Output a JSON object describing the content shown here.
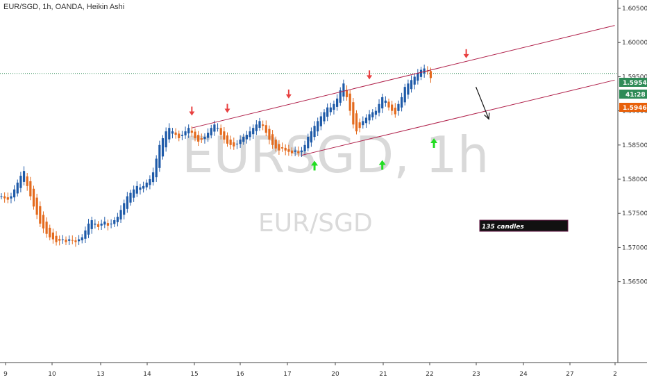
{
  "title": "EUR/SGD, 1h, OANDA, Heikin Ashi",
  "watermark": {
    "big": "EURSGD, 1h",
    "small": "EUR/SGD"
  },
  "colors": {
    "up": "#1e5aa8",
    "down": "#e46a1d",
    "channel": "#b0204a",
    "arrow_down": "#e84040",
    "arrow_up": "#22dd22",
    "current_price": "#2e8b57",
    "last_price": "#e8600a"
  },
  "axis": {
    "y_ticks": [
      "1.60500",
      "1.60000",
      "1.59500",
      "1.59000",
      "1.58500",
      "1.58000",
      "1.57500",
      "1.57000",
      "1.56500"
    ],
    "x_ticks": [
      "9",
      "10",
      "13",
      "14",
      "15",
      "16",
      "17",
      "20",
      "21",
      "22",
      "23",
      "24",
      "27",
      "2"
    ]
  },
  "price_labels": {
    "current": "1.59547",
    "countdown": "41:28",
    "last": "1.59467"
  },
  "annotation": {
    "text": "135 candles"
  },
  "chart_data": {
    "type": "candlestick",
    "title": "EUR/SGD, 1h, OANDA, Heikin Ashi",
    "ylim": [
      1.561,
      1.6065
    ],
    "y_ticks": [
      1.605,
      1.6,
      1.595,
      1.59,
      1.585,
      1.58,
      1.575,
      1.57,
      1.565
    ],
    "x_ticks": [
      "9",
      "10",
      "13",
      "14",
      "15",
      "16",
      "17",
      "20",
      "21",
      "22",
      "23",
      "24",
      "27",
      "2"
    ],
    "candle_count": 134,
    "current_price": 1.59547,
    "last_price": 1.59467,
    "channel": {
      "upper": [
        {
          "x": 59,
          "y": 1.5875
        },
        {
          "x": 190,
          "y": 1.6025
        }
      ],
      "lower": [
        {
          "x": 93,
          "y": 1.5835
        },
        {
          "x": 190,
          "y": 1.5945
        }
      ]
    },
    "closes": [
      1.5775,
      1.5772,
      1.577,
      1.5775,
      1.5785,
      1.5795,
      1.5805,
      1.5812,
      1.579,
      1.5775,
      1.576,
      1.5748,
      1.5735,
      1.5728,
      1.572,
      1.5715,
      1.5712,
      1.5708,
      1.571,
      1.5712,
      1.5708,
      1.5712,
      1.571,
      1.5708,
      1.5712,
      1.5715,
      1.5725,
      1.5735,
      1.574,
      1.5735,
      1.573,
      1.5735,
      1.5738,
      1.5732,
      1.5735,
      1.574,
      1.5745,
      1.5755,
      1.5765,
      1.5775,
      1.578,
      1.5785,
      1.579,
      1.5788,
      1.579,
      1.5795,
      1.58,
      1.581,
      1.583,
      1.585,
      1.586,
      1.587,
      1.5875,
      1.587,
      1.5865,
      1.586,
      1.5865,
      1.587,
      1.5875,
      1.5868,
      1.586,
      1.5855,
      1.5858,
      1.5862,
      1.5868,
      1.5875,
      1.588,
      1.5875,
      1.5865,
      1.5858,
      1.5852,
      1.585,
      1.5848,
      1.5852,
      1.5858,
      1.5862,
      1.5865,
      1.587,
      1.5875,
      1.588,
      1.5885,
      1.5878,
      1.5868,
      1.5858,
      1.585,
      1.5845,
      1.5842,
      1.5845,
      1.5842,
      1.584,
      1.5838,
      1.5842,
      1.5838,
      1.5842,
      1.585,
      1.5862,
      1.587,
      1.5878,
      1.5885,
      1.5892,
      1.5898,
      1.5905,
      1.5905,
      1.591,
      1.5918,
      1.593,
      1.594,
      1.592,
      1.59,
      1.588,
      1.587,
      1.5875,
      1.5885,
      1.589,
      1.5895,
      1.5898,
      1.59,
      1.591,
      1.592,
      1.5915,
      1.5905,
      1.59,
      1.5895,
      1.591,
      1.592,
      1.5935,
      1.594,
      1.5945,
      1.595,
      1.5955,
      1.596,
      1.5962,
      1.5958,
      1.5948
    ],
    "markers": [
      {
        "type": "down-arrow",
        "x": 59,
        "price": 1.5893
      },
      {
        "type": "down-arrow",
        "x": 70,
        "price": 1.5897
      },
      {
        "type": "down-arrow",
        "x": 89,
        "price": 1.5918
      },
      {
        "type": "down-arrow",
        "x": 114,
        "price": 1.5946
      },
      {
        "type": "down-arrow",
        "x": 144,
        "price": 1.5977
      },
      {
        "type": "up-arrow",
        "x": 97,
        "price": 1.5827
      },
      {
        "type": "up-arrow",
        "x": 118,
        "price": 1.5828
      },
      {
        "type": "up-arrow",
        "x": 134,
        "price": 1.586
      }
    ],
    "projection": {
      "from": {
        "x": 147,
        "price": 1.5935
      },
      "to": {
        "x": 151,
        "price": 1.5888
      }
    }
  }
}
